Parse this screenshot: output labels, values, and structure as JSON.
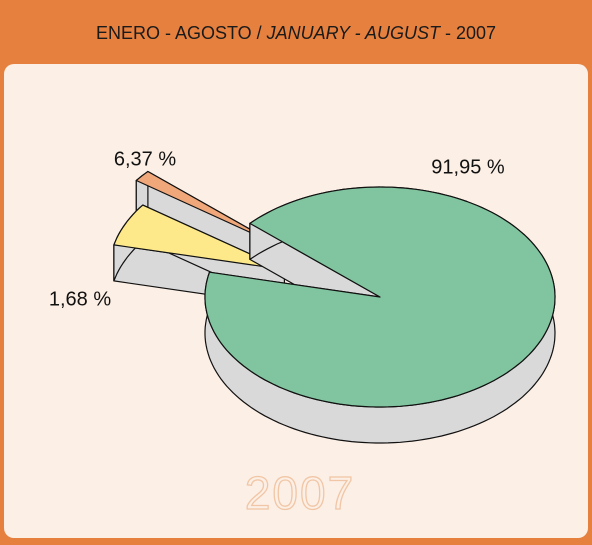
{
  "chart_data": {
    "type": "pie",
    "title": [
      "ENERO - AGOSTO / ",
      "JANUARY - AUGUST",
      " - 2007"
    ],
    "title_italic": [
      false,
      true,
      false
    ],
    "watermark": "2007",
    "categories": [
      null,
      null,
      null
    ],
    "values": [
      91.95,
      6.37,
      1.68
    ],
    "value_labels": [
      "91,95 %",
      "6,37 %",
      "1,68 %"
    ],
    "colors": [
      "#80c59f",
      "#fde98a",
      "#f0a77a"
    ]
  }
}
